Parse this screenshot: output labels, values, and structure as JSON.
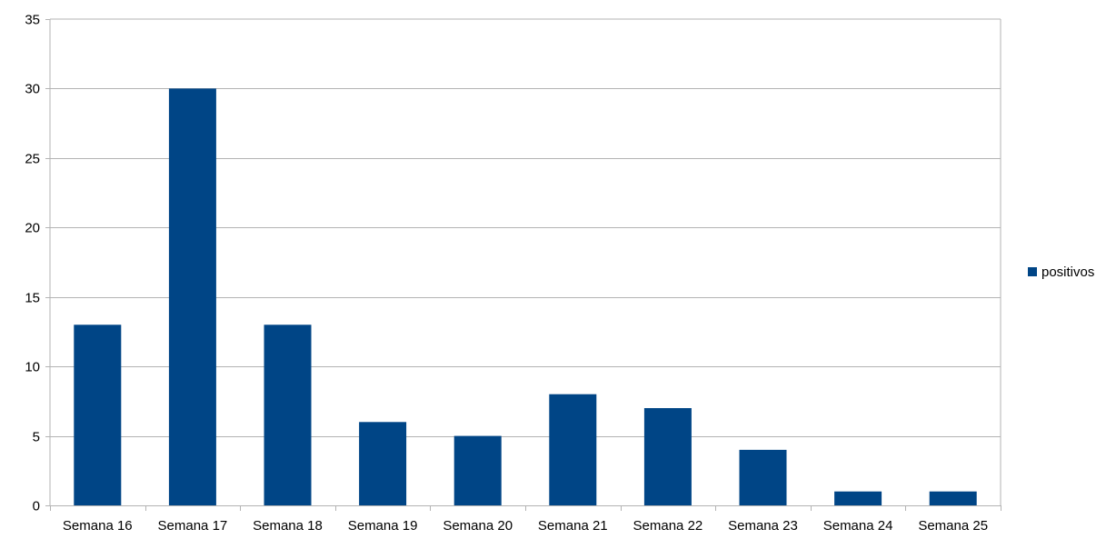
{
  "chart_data": {
    "type": "bar",
    "title": "",
    "xlabel": "",
    "ylabel": "",
    "categories": [
      "Semana 16",
      "Semana 17",
      "Semana 18",
      "Semana 19",
      "Semana 20",
      "Semana 21",
      "Semana 22",
      "Semana 23",
      "Semana 24",
      "Semana 25"
    ],
    "series": [
      {
        "name": "positivos",
        "values": [
          13,
          30,
          13,
          6,
          5,
          8,
          7,
          4,
          1,
          1
        ],
        "color": "#004586"
      }
    ],
    "ylim": [
      0,
      35
    ],
    "yticks": [
      "0",
      "5",
      "10",
      "15",
      "20",
      "25",
      "30",
      "35"
    ],
    "grid": true,
    "legend_position": "right"
  }
}
